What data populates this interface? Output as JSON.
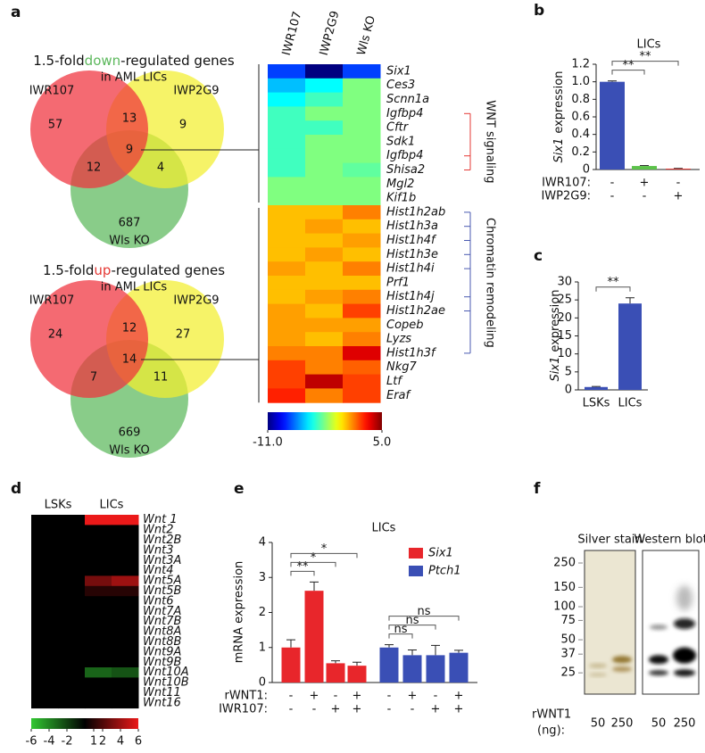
{
  "chart_data": [
    {
      "type": "venn",
      "panel": "a",
      "title": [
        "1.5-fold",
        "down",
        "-regulated genes",
        "in AML LICs"
      ],
      "highlight_color": "#5cb85c",
      "sets": [
        {
          "name": "IWR107",
          "color": "#f0303c"
        },
        {
          "name": "IWP2G9",
          "color": "#f2ee2e"
        },
        {
          "name": "Wls KO",
          "color": "#5cb85c"
        }
      ],
      "only": [
        57,
        9,
        687
      ],
      "pairs": [
        13,
        12,
        4
      ],
      "all": 9
    },
    {
      "type": "venn",
      "title": [
        "1.5-fold",
        "up",
        "-regulated genes",
        "in AML LICs"
      ],
      "highlight_color": "#e53935",
      "sets": [
        {
          "name": "IWR107",
          "color": "#f0303c"
        },
        {
          "name": "IWP2G9",
          "color": "#f2ee2e"
        },
        {
          "name": "Wls KO",
          "color": "#5cb85c"
        }
      ],
      "only": [
        24,
        27,
        669
      ],
      "pairs": [
        12,
        7,
        11
      ],
      "all": 14
    },
    {
      "type": "heatmap",
      "columns": [
        "IWR107",
        "IWP2G9",
        "Wls KO"
      ],
      "rows": [
        "Six1",
        "Ces3",
        "Scnn1a",
        "Igfbp4",
        "Cftr",
        "Sdk1",
        "Igfbp4",
        "Shisa2",
        "Mgl2",
        "Kif1b",
        "Hist1h2ab",
        "Hist1h3a",
        "Hist1h4f",
        "Hist1h3e",
        "Hist1h4i",
        "Prf1",
        "Hist1h4j",
        "Hist1h2ae",
        "Copeb",
        "Lyzs",
        "Hist1h3f",
        "Nkg7",
        "Ltf",
        "Eraf"
      ],
      "row_colors": [
        "#000000",
        "#000000",
        "#000000",
        "#e53935",
        "#000000",
        "#000000",
        "#e53935",
        "#e53935",
        "#000000",
        "#000000",
        "#4a5ab0",
        "#4a5ab0",
        "#4a5ab0",
        "#4a5ab0",
        "#4a5ab0",
        "#000000",
        "#4a5ab0",
        "#4a5ab0",
        "#000000",
        "#000000",
        "#4a5ab0",
        "#000000",
        "#000000",
        "#000000"
      ],
      "values": [
        [
          -8,
          -11,
          -8
        ],
        [
          -6,
          -5,
          -3
        ],
        [
          -5,
          -4,
          -3
        ],
        [
          -4,
          -3,
          -3
        ],
        [
          -4,
          -4,
          -3
        ],
        [
          -4,
          -3,
          -3
        ],
        [
          -4,
          -3,
          -3
        ],
        [
          -4,
          -3,
          -3.5
        ],
        [
          -3,
          -3,
          -3
        ],
        [
          -3,
          -3,
          -3
        ],
        [
          0,
          0,
          1
        ],
        [
          0,
          0.5,
          0
        ],
        [
          0,
          0,
          0.5
        ],
        [
          0,
          0.5,
          0
        ],
        [
          0.5,
          0,
          1
        ],
        [
          0,
          0,
          0
        ],
        [
          0,
          0.5,
          1
        ],
        [
          0.5,
          0,
          2
        ],
        [
          0.5,
          0.5,
          0.5
        ],
        [
          0.5,
          0,
          1
        ],
        [
          1,
          1,
          3.5
        ],
        [
          2,
          1,
          1.5
        ],
        [
          2,
          4,
          2
        ],
        [
          2.5,
          1,
          2
        ]
      ],
      "groups": [
        {
          "name": "WNT signaling",
          "color": "#e53935",
          "rows": [
            3,
            7
          ]
        },
        {
          "name": "Chromatin remodeling",
          "color": "#4a5ab0",
          "rows": [
            10,
            20
          ]
        }
      ],
      "colormap": "jet",
      "clim": [
        -11,
        5
      ],
      "colorbar_ticks": [
        {
          "value": -11,
          "label": "-11.0"
        },
        {
          "value": 5,
          "label": "5.0"
        }
      ]
    },
    {
      "type": "bar",
      "panel": "b",
      "title": "LICs",
      "y_label": [
        "Six1",
        "expression"
      ],
      "values": [
        1.0,
        0.04,
        0.01
      ],
      "errors": [
        0.01,
        0.005,
        0.003
      ],
      "colors": [
        "#3a4fb5",
        "#5cc24a",
        "#e53935"
      ],
      "conditions": [
        {
          "name": "IWR107:",
          "values": [
            "-",
            "+",
            "-"
          ]
        },
        {
          "name": "IWP2G9:",
          "values": [
            "-",
            "-",
            "+"
          ]
        }
      ],
      "significance": [
        {
          "pair": [
            0,
            1
          ],
          "label": "**"
        },
        {
          "pair": [
            0,
            2
          ],
          "label": "**"
        }
      ],
      "ylim": [
        0,
        1.2
      ],
      "yticks": [
        0,
        0.2,
        0.4,
        0.6,
        0.8,
        {
          "value": 1,
          "label": "1.0"
        },
        1.2
      ]
    },
    {
      "type": "bar",
      "panel": "c",
      "y_label": [
        "Six1",
        "expression"
      ],
      "categories": [
        "LSKs",
        "LICs"
      ],
      "values": [
        0.8,
        24
      ],
      "errors": [
        0.15,
        1.6
      ],
      "color": "#3a4fb5",
      "significance": [
        {
          "pair": [
            0,
            1
          ],
          "label": "**"
        }
      ],
      "ylim": [
        0,
        30
      ],
      "yticks": [
        0,
        5,
        10,
        15,
        20,
        25,
        30
      ]
    },
    {
      "type": "heatmap",
      "panel": "d",
      "columns": [
        "LSKs",
        "LICs"
      ],
      "rows": [
        "Wnt 1",
        "Wnt2",
        "Wnt2B",
        "Wnt3",
        "Wnt3A",
        "Wnt4",
        "Wnt5A",
        "Wnt5B",
        "Wnt6",
        "Wnt7A",
        "Wnt7B",
        "Wnt8A",
        "Wnt8B",
        "Wnt9A",
        "Wnt9B",
        "Wnt10A",
        "Wnt10B",
        "Wnt11",
        "Wnt16"
      ],
      "values": [
        [
          0,
          0,
          6,
          6
        ],
        [
          0,
          0,
          0,
          0
        ],
        [
          0,
          0,
          0,
          0
        ],
        [
          0,
          0,
          0,
          0
        ],
        [
          0,
          0,
          0,
          0
        ],
        [
          0,
          0,
          0,
          0
        ],
        [
          0,
          0,
          3,
          4
        ],
        [
          0,
          0,
          1,
          1
        ],
        [
          0,
          0,
          0,
          0
        ],
        [
          0,
          0,
          0,
          0
        ],
        [
          0,
          0,
          0,
          0
        ],
        [
          0,
          0,
          0,
          0
        ],
        [
          0,
          0,
          0,
          0
        ],
        [
          0,
          0,
          0,
          0
        ],
        [
          0,
          0,
          0,
          0
        ],
        [
          0,
          0,
          -3,
          -2.5
        ],
        [
          0,
          0,
          0,
          0
        ],
        [
          0,
          0,
          0,
          0
        ],
        [
          0,
          0,
          0,
          0
        ]
      ],
      "colormap": "green-black-red",
      "clim": [
        -6,
        6
      ],
      "colorbar_ticks": [
        -6,
        -4,
        -2,
        1,
        2,
        4,
        6
      ]
    },
    {
      "type": "bar",
      "panel": "e",
      "title": "LICs",
      "y_label": "mRNA expression",
      "series": [
        {
          "name": "Six1",
          "color": "#e8262b",
          "values": [
            1.0,
            2.62,
            0.55,
            0.48
          ],
          "errors": [
            0.22,
            0.25,
            0.07,
            0.1
          ],
          "significance": [
            {
              "pair": [
                0,
                1
              ],
              "label": "**"
            },
            {
              "pair": [
                0,
                2
              ],
              "label": "*"
            },
            {
              "pair": [
                0,
                3
              ],
              "label": "*"
            }
          ]
        },
        {
          "name": "Ptch1",
          "color": "#3a4fb5",
          "values": [
            1.0,
            0.78,
            0.78,
            0.85
          ],
          "errors": [
            0.08,
            0.15,
            0.28,
            0.07
          ],
          "significance": [
            {
              "pair": [
                0,
                1
              ],
              "label": "ns"
            },
            {
              "pair": [
                0,
                2
              ],
              "label": "ns"
            },
            {
              "pair": [
                0,
                3
              ],
              "label": "ns"
            }
          ]
        }
      ],
      "conditions": [
        {
          "name": "rWNT1:",
          "values": [
            "-",
            "+",
            "-",
            "+",
            "-",
            "+",
            "-",
            "+"
          ]
        },
        {
          "name": "IWR107:",
          "values": [
            "-",
            "-",
            "+",
            "+",
            "-",
            "-",
            "+",
            "+"
          ]
        }
      ],
      "ylim": [
        0,
        4
      ],
      "yticks": [
        0,
        1,
        2,
        3,
        4
      ]
    },
    {
      "type": "blot",
      "panel": "f",
      "panels": [
        "Silver stain",
        "Western blot"
      ],
      "yticks": [
        250,
        150,
        100,
        75,
        50,
        37,
        25
      ],
      "ylim": [
        16,
        325
      ],
      "log_scale": true,
      "x_label": [
        "rWNT1",
        "(ng):"
      ],
      "lanes": [
        50,
        250,
        50,
        250
      ]
    }
  ]
}
